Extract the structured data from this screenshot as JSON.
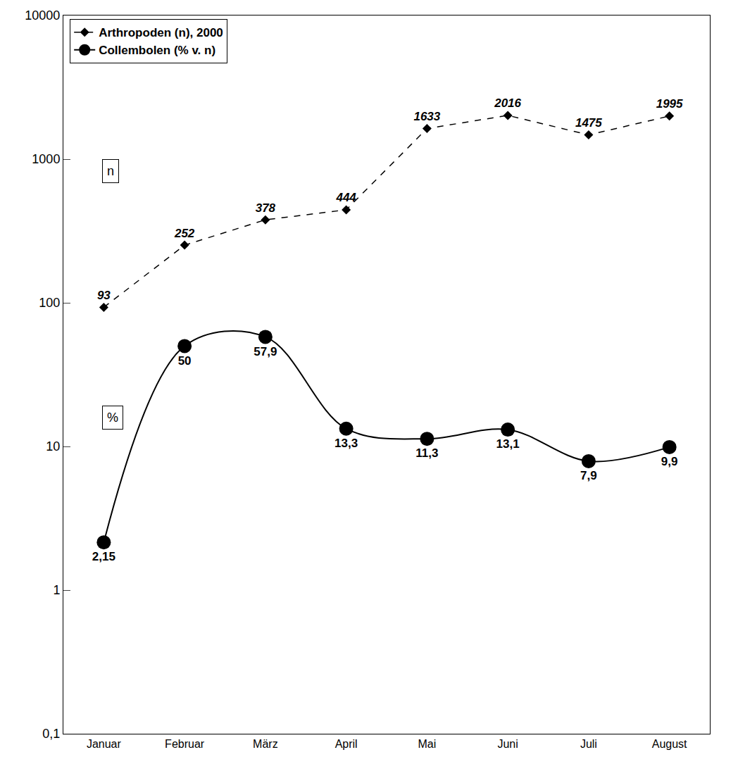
{
  "chart_data": {
    "type": "line",
    "categories": [
      "Januar",
      "Februar",
      "März",
      "April",
      "Mai",
      "Juni",
      "Juli",
      "August"
    ],
    "series": [
      {
        "name": "Arthropoden (n), 2000",
        "color": "#000000",
        "line_style": "dash",
        "marker": "diamond",
        "values": [
          93,
          252,
          378,
          444,
          1633,
          2016,
          1475,
          1995
        ]
      },
      {
        "name": "Collembolen (% v. n)",
        "color": "#000000",
        "line_style": "solid",
        "marker": "circle",
        "values": [
          2.15,
          50,
          57.9,
          13.3,
          11.3,
          13.1,
          7.9,
          9.9
        ],
        "value_labels": [
          "2,15",
          "50",
          "57,9",
          "13,3",
          "11,3",
          "13,1",
          "7,9",
          "9,9"
        ]
      }
    ],
    "annotations": [
      "n",
      "%"
    ],
    "log": "y",
    "ylim": [
      0.1,
      10000
    ],
    "yticks": [
      {
        "value": 0.1,
        "label": "0,1"
      },
      1,
      10,
      100,
      1000,
      10000
    ],
    "grid": false,
    "legend": "top left",
    "data_labels": true
  }
}
